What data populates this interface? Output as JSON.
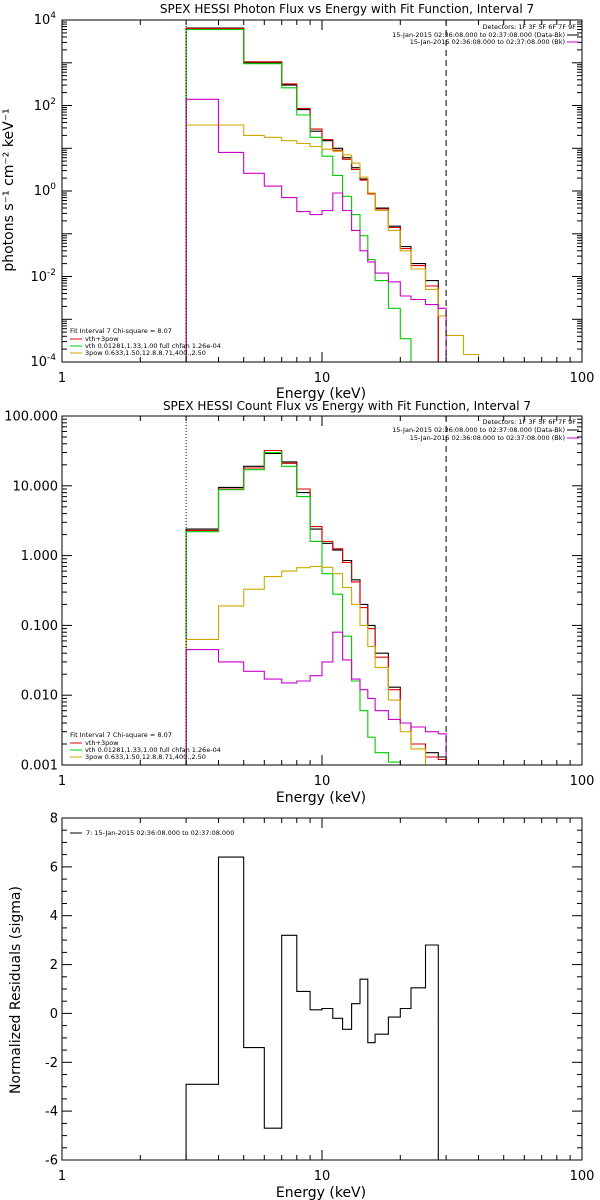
{
  "chart_data": [
    {
      "type": "line",
      "title": "SPEX HESSI Photon Flux vs Energy with Fit Function, Interval 7",
      "xlabel": "Energy (keV)",
      "ylabel": "photons s⁻¹ cm⁻² keV⁻¹",
      "xscale": "log",
      "yscale": "log",
      "xlim": [
        1,
        100
      ],
      "ylim": [
        0.0001,
        10000
      ],
      "x_ticks": [
        {
          "value": 1,
          "label": "1"
        },
        {
          "value": 10,
          "label": "10"
        },
        {
          "value": 100,
          "label": "100"
        }
      ],
      "y_ticks": [
        {
          "value": 0.0001,
          "base": "10",
          "exp": "-4"
        },
        {
          "value": 0.01,
          "base": "10",
          "exp": "-2"
        },
        {
          "value": 1,
          "base": "10",
          "exp": "0"
        },
        {
          "value": 100,
          "base": "10",
          "exp": "2"
        },
        {
          "value": 10000,
          "base": "10",
          "exp": "4"
        }
      ],
      "vlines": [
        {
          "x": 3,
          "style": "dotted"
        },
        {
          "x": 30,
          "style": "dashed"
        }
      ],
      "legend_top": {
        "placement": "top-right",
        "header": "Detectors: 1F 3F 5F 6F 7F 9F",
        "entries": [
          {
            "label": "15-Jan-2015 02:36:08.000 to 02:37:08.000 (Data-Bk)",
            "color": "#000000"
          },
          {
            "label": "15-Jan-2015 02:36:08.000 to 02:37:08.000 (Bk)",
            "color": "#cc00cc"
          }
        ]
      },
      "legend_bottom": {
        "placement": "bottom-left",
        "header": "Fit Interval 7   Chi-square = 8.07",
        "entries": [
          {
            "label": "vth+3pow",
            "color": "#dd0000"
          },
          {
            "label": "vth 0.01281,1.33,1.00  full chfan 1.26e-04",
            "color": "#00cc00"
          },
          {
            "label": "3pow 0.633,1.50,12.8,8.71,400.,2.50",
            "color": "#ccaa00"
          }
        ]
      },
      "bin_edges": [
        3,
        4,
        5,
        6,
        7,
        8,
        9,
        10,
        11,
        12,
        13,
        14,
        15,
        16,
        18,
        20,
        22,
        25,
        28,
        30,
        35,
        40,
        45
      ],
      "series": [
        {
          "name": "Data-Bk",
          "color": "#000000",
          "values": [
            6500,
            6500,
            1000,
            1000,
            300,
            80,
            25,
            15,
            10,
            6,
            3.5,
            1.9,
            0.9,
            0.4,
            0.15,
            0.05,
            0.02,
            0.008
          ]
        },
        {
          "name": "vth+3pow",
          "color": "#dd0000",
          "values": [
            6300,
            6300,
            1050,
            1050,
            320,
            85,
            28,
            16,
            9,
            5.5,
            3.2,
            1.8,
            0.85,
            0.38,
            0.14,
            0.045,
            0.018,
            0.006
          ]
        },
        {
          "name": "vth",
          "color": "#00cc00",
          "values": [
            6000,
            6000,
            950,
            950,
            260,
            60,
            18,
            6.5,
            2.3,
            0.75,
            0.28,
            0.09,
            0.025,
            0.008,
            0.0018,
            0.00035,
            7e-05,
            1e-05
          ]
        },
        {
          "name": "3pow",
          "color": "#ccaa00",
          "values": [
            35,
            35,
            20,
            18,
            15,
            13,
            11,
            9.5,
            8.5,
            7,
            4.5,
            2.1,
            0.9,
            0.35,
            0.12,
            0.04,
            0.015,
            0.005,
            0.0012,
            0.00042,
            0.00015,
            7e-05
          ]
        },
        {
          "name": "Bk",
          "color": "#cc00cc",
          "values": [
            140,
            8,
            2.6,
            1.3,
            0.7,
            0.33,
            0.28,
            0.35,
            0.9,
            0.35,
            0.12,
            0.04,
            0.022,
            0.012,
            0.0075,
            0.0035,
            0.0029,
            0.0022,
            0.0018
          ]
        }
      ]
    },
    {
      "type": "line",
      "title": "SPEX HESSI Count Flux vs Energy with Fit Function, Interval 7",
      "xlabel": "Energy (keV)",
      "xscale": "log",
      "yscale": "log",
      "xlim": [
        1,
        100
      ],
      "ylim": [
        0.001,
        100
      ],
      "x_ticks": [
        {
          "value": 1,
          "label": "1"
        },
        {
          "value": 10,
          "label": "10"
        },
        {
          "value": 100,
          "label": "100"
        }
      ],
      "y_ticks": [
        {
          "value": 0.001,
          "label": "0.001"
        },
        {
          "value": 0.01,
          "label": "0.010"
        },
        {
          "value": 0.1,
          "label": "0.100"
        },
        {
          "value": 1,
          "label": "1.000"
        },
        {
          "value": 10,
          "label": "10.000"
        },
        {
          "value": 100,
          "label": "100.000"
        }
      ],
      "vlines": [
        {
          "x": 3,
          "style": "dotted"
        },
        {
          "x": 30,
          "style": "dashed"
        }
      ],
      "legend_top": {
        "placement": "top-right",
        "header": "Detectors: 1F 3F 5F 6F 7F 9F",
        "entries": [
          {
            "label": "15-Jan-2015 02:36:08.000 to 02:37:08.000 (Data-Bk)",
            "color": "#000000"
          },
          {
            "label": "15-Jan-2015 02:36:08.000 to 02:37:08.000 (Bk)",
            "color": "#cc00cc"
          }
        ]
      },
      "legend_bottom": {
        "placement": "bottom-left",
        "header": "Fit Interval 7   Chi-square = 8.07",
        "entries": [
          {
            "label": "vth+3pow",
            "color": "#dd0000"
          },
          {
            "label": "vth 0.01281,1.33,1.00  full chfan 1.26e-04",
            "color": "#00cc00"
          },
          {
            "label": "3pow 0.633,1.50,12.8,8.71,400.,2.50",
            "color": "#ccaa00"
          }
        ]
      },
      "bin_edges": [
        3,
        4,
        5,
        6,
        7,
        8,
        9,
        10,
        11,
        12,
        13,
        14,
        15,
        16,
        18,
        20,
        22,
        25,
        28,
        30
      ],
      "series": [
        {
          "name": "Data-Bk",
          "color": "#000000",
          "values": [
            2.4,
            9.5,
            19,
            29,
            22,
            8,
            2.4,
            1.5,
            1.2,
            0.85,
            0.45,
            0.2,
            0.1,
            0.04,
            0.013,
            0.004,
            0.002,
            0.0015,
            0.0013
          ]
        },
        {
          "name": "vth+3pow",
          "color": "#dd0000",
          "values": [
            2.3,
            9,
            18,
            32,
            21,
            9,
            2.6,
            1.6,
            1.25,
            0.8,
            0.42,
            0.18,
            0.09,
            0.035,
            0.012,
            0.004,
            0.002,
            0.0013,
            0.0012
          ]
        },
        {
          "name": "vth",
          "color": "#00cc00",
          "values": [
            2.2,
            8.8,
            17,
            30,
            19,
            7,
            1.6,
            0.55,
            0.28,
            0.07,
            0.016,
            0.006,
            0.0025,
            0.0015,
            0.0011
          ]
        },
        {
          "name": "3pow",
          "color": "#ccaa00",
          "values": [
            0.063,
            0.19,
            0.33,
            0.5,
            0.6,
            0.67,
            0.7,
            0.68,
            0.55,
            0.35,
            0.2,
            0.1,
            0.05,
            0.025,
            0.0085,
            0.003,
            0.0017,
            0.001,
            0.001
          ]
        },
        {
          "name": "Bk",
          "color": "#cc00cc",
          "values": [
            0.045,
            0.03,
            0.022,
            0.017,
            0.015,
            0.016,
            0.019,
            0.03,
            0.08,
            0.032,
            0.017,
            0.012,
            0.009,
            0.006,
            0.0045,
            0.004,
            0.0035,
            0.003,
            0.0028
          ]
        }
      ]
    },
    {
      "type": "line",
      "xlabel": "Energy (keV)",
      "ylabel": "Normalized Residuals (sigma)",
      "xscale": "log",
      "xlim": [
        1,
        100
      ],
      "ylim": [
        -6,
        8
      ],
      "x_ticks": [
        {
          "value": 1,
          "label": "1"
        },
        {
          "value": 10,
          "label": "10"
        },
        {
          "value": 100,
          "label": "100"
        }
      ],
      "y_ticks": [
        {
          "value": -6,
          "label": "-6"
        },
        {
          "value": -4,
          "label": "-4"
        },
        {
          "value": -2,
          "label": "-2"
        },
        {
          "value": 0,
          "label": "0"
        },
        {
          "value": 2,
          "label": "2"
        },
        {
          "value": 4,
          "label": "4"
        },
        {
          "value": 6,
          "label": "6"
        },
        {
          "value": 8,
          "label": "8"
        }
      ],
      "legend": {
        "placement": "top-left",
        "entries": [
          {
            "label": "7: 15-Jan-2015 02:36:08.000 to 02:37:08.000",
            "color": "#000000"
          }
        ]
      },
      "bin_edges": [
        3,
        4,
        5,
        6,
        7,
        8,
        9,
        10,
        11,
        12,
        13,
        14,
        15,
        16,
        18,
        20,
        22,
        25,
        28,
        30
      ],
      "series": [
        {
          "name": "7",
          "color": "#000000",
          "values": [
            -2.9,
            6.4,
            -1.4,
            -4.7,
            3.2,
            0.9,
            0.15,
            0.2,
            -0.2,
            -0.65,
            0.4,
            1.4,
            -1.2,
            -0.85,
            -0.15,
            0.2,
            1.05,
            2.8
          ]
        }
      ]
    }
  ]
}
